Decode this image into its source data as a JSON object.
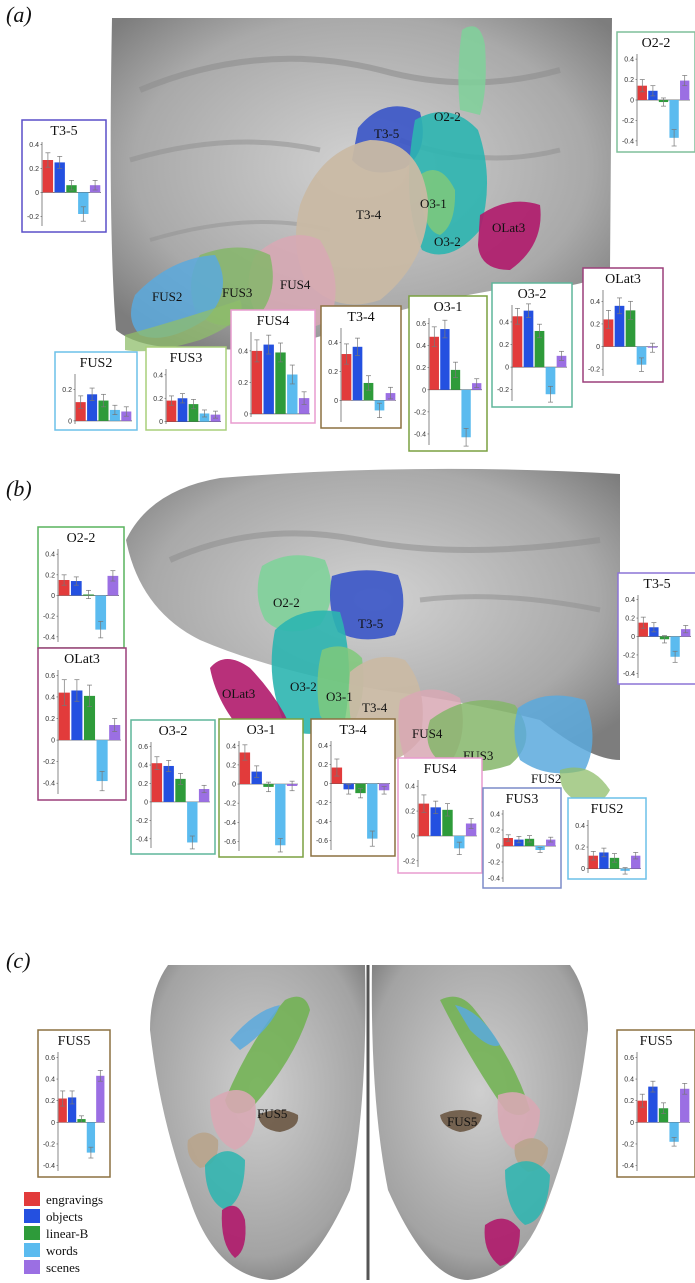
{
  "panel_labels": [
    "(a)",
    "(b)",
    "(c)"
  ],
  "colors": {
    "engravings": "#e23b3b",
    "objects": "#2450e0",
    "linear_b": "#2e9b3a",
    "words": "#5bbbef",
    "scenes": "#9b6fe3"
  },
  "legend": [
    "engravings",
    "objects",
    "linear-B",
    "words",
    "scenes"
  ],
  "region_labels": {
    "a": [
      "T3-5",
      "O2-2",
      "O3-1",
      "T3-4",
      "O3-2",
      "OLat3",
      "FUS2",
      "FUS3",
      "FUS4"
    ],
    "b": [
      "O2-2",
      "T3-5",
      "O3-2",
      "O3-1",
      "T3-4",
      "OLat3",
      "FUS4",
      "FUS3",
      "FUS2"
    ],
    "c": [
      "FUS5",
      "FUS5"
    ]
  },
  "chart_data": [
    {
      "id": "a-o2-2",
      "type": "bar",
      "title": "O2-2",
      "ticks": [
        0.4,
        0.2,
        0,
        -0.2,
        -0.4
      ],
      "ylim": [
        -0.45,
        0.45
      ],
      "values": [
        0.14,
        0.09,
        -0.02,
        -0.37,
        0.19
      ],
      "errors": [
        0.06,
        0.05,
        0.04,
        0.08,
        0.05
      ],
      "frame": "#7fbf9a"
    },
    {
      "id": "a-t3-5",
      "type": "bar",
      "title": "T3-5",
      "ticks": [
        0.4,
        0.2,
        0,
        -0.2
      ],
      "ylim": [
        -0.28,
        0.42
      ],
      "values": [
        0.27,
        0.25,
        0.06,
        -0.18,
        0.06
      ],
      "errors": [
        0.06,
        0.05,
        0.04,
        0.06,
        0.04
      ],
      "frame": "#5a4fc9"
    },
    {
      "id": "a-olat3",
      "type": "bar",
      "title": "OLat3",
      "ticks": [
        0.4,
        0.2,
        0,
        -0.2
      ],
      "ylim": [
        -0.26,
        0.5
      ],
      "values": [
        0.24,
        0.36,
        0.32,
        -0.16,
        -0.01
      ],
      "errors": [
        0.08,
        0.07,
        0.08,
        0.06,
        0.04
      ],
      "frame": "#9b3f7a"
    },
    {
      "id": "a-o3-2",
      "type": "bar",
      "title": "O3-2",
      "ticks": [
        0.4,
        0.2,
        0,
        -0.2
      ],
      "ylim": [
        -0.3,
        0.55
      ],
      "values": [
        0.45,
        0.5,
        0.32,
        -0.24,
        0.1
      ],
      "errors": [
        0.07,
        0.06,
        0.06,
        0.07,
        0.04
      ],
      "frame": "#5fb59a"
    },
    {
      "id": "a-o3-1",
      "type": "bar",
      "title": "O3-1",
      "ticks": [
        0.6,
        0.4,
        0.2,
        0,
        -0.2,
        -0.4
      ],
      "ylim": [
        -0.5,
        0.65
      ],
      "values": [
        0.48,
        0.55,
        0.18,
        -0.43,
        0.06
      ],
      "errors": [
        0.09,
        0.08,
        0.07,
        0.08,
        0.04
      ],
      "frame": "#7aa040"
    },
    {
      "id": "a-t3-4",
      "type": "bar",
      "title": "T3-4",
      "ticks": [
        0.4,
        0.2,
        0
      ],
      "ylim": [
        -0.15,
        0.5
      ],
      "values": [
        0.32,
        0.37,
        0.12,
        -0.07,
        0.05
      ],
      "errors": [
        0.07,
        0.06,
        0.05,
        0.05,
        0.04
      ],
      "frame": "#8c7040"
    },
    {
      "id": "a-fus4",
      "type": "bar",
      "title": "FUS4",
      "ticks": [
        0.4,
        0.2,
        0
      ],
      "ylim": [
        -0.02,
        0.52
      ],
      "values": [
        0.4,
        0.44,
        0.39,
        0.25,
        0.1
      ],
      "errors": [
        0.07,
        0.06,
        0.06,
        0.06,
        0.04
      ],
      "frame": "#e89ccf"
    },
    {
      "id": "a-fus3",
      "type": "bar",
      "title": "FUS3",
      "ticks": [
        0.4,
        0.2,
        0
      ],
      "ylim": [
        -0.02,
        0.45
      ],
      "values": [
        0.18,
        0.2,
        0.15,
        0.07,
        0.06
      ],
      "errors": [
        0.04,
        0.04,
        0.04,
        0.03,
        0.03
      ],
      "frame": "#a9cf7a"
    },
    {
      "id": "a-fus2",
      "type": "bar",
      "title": "FUS2",
      "ticks": [
        0.2,
        0
      ],
      "ylim": [
        -0.02,
        0.3
      ],
      "values": [
        0.12,
        0.17,
        0.13,
        0.07,
        0.06
      ],
      "errors": [
        0.04,
        0.04,
        0.04,
        0.03,
        0.03
      ],
      "frame": "#6cc0e8"
    },
    {
      "id": "b-o2-2",
      "type": "bar",
      "title": "O2-2",
      "ticks": [
        0.4,
        0.2,
        0,
        -0.2,
        -0.4
      ],
      "ylim": [
        -0.45,
        0.45
      ],
      "values": [
        0.15,
        0.14,
        0.01,
        -0.33,
        0.19
      ],
      "errors": [
        0.05,
        0.04,
        0.04,
        0.08,
        0.05
      ],
      "frame": "#59b35d"
    },
    {
      "id": "b-t3-5",
      "type": "bar",
      "title": "T3-5",
      "ticks": [
        0.4,
        0.2,
        0,
        -0.2,
        -0.4
      ],
      "ylim": [
        -0.45,
        0.45
      ],
      "values": [
        0.15,
        0.1,
        -0.03,
        -0.22,
        0.08
      ],
      "errors": [
        0.06,
        0.05,
        0.04,
        0.06,
        0.04
      ],
      "frame": "#8c74d6"
    },
    {
      "id": "b-olat3",
      "type": "bar",
      "title": "OLat3",
      "ticks": [
        0.6,
        0.4,
        0.2,
        0,
        -0.2,
        -0.4
      ],
      "ylim": [
        -0.5,
        0.65
      ],
      "values": [
        0.44,
        0.46,
        0.41,
        -0.38,
        0.14
      ],
      "errors": [
        0.12,
        0.1,
        0.1,
        0.09,
        0.06
      ],
      "frame": "#9b3f7a"
    },
    {
      "id": "b-o3-2",
      "type": "bar",
      "title": "O3-2",
      "ticks": [
        0.6,
        0.4,
        0.2,
        0,
        -0.2,
        -0.4
      ],
      "ylim": [
        -0.5,
        0.65
      ],
      "values": [
        0.42,
        0.39,
        0.25,
        -0.44,
        0.14
      ],
      "errors": [
        0.07,
        0.06,
        0.06,
        0.07,
        0.04
      ],
      "frame": "#5fb59a"
    },
    {
      "id": "b-o3-1",
      "type": "bar",
      "title": "O3-1",
      "ticks": [
        0.4,
        0.2,
        0,
        -0.2,
        -0.4,
        -0.6
      ],
      "ylim": [
        -0.7,
        0.45
      ],
      "values": [
        0.33,
        0.13,
        -0.03,
        -0.64,
        -0.02
      ],
      "errors": [
        0.08,
        0.06,
        0.05,
        0.07,
        0.05
      ],
      "frame": "#7aa040"
    },
    {
      "id": "b-t3-4",
      "type": "bar",
      "title": "T3-4",
      "ticks": [
        0.4,
        0.2,
        0,
        -0.2,
        -0.4,
        -0.6
      ],
      "ylim": [
        -0.7,
        0.45
      ],
      "values": [
        0.17,
        -0.06,
        -0.1,
        -0.58,
        -0.07
      ],
      "errors": [
        0.09,
        0.05,
        0.05,
        0.08,
        0.04
      ],
      "frame": "#8c7040"
    },
    {
      "id": "b-fus4",
      "type": "bar",
      "title": "FUS4",
      "ticks": [
        0.4,
        0.2,
        0,
        -0.2
      ],
      "ylim": [
        -0.25,
        0.45
      ],
      "values": [
        0.26,
        0.23,
        0.21,
        -0.1,
        0.1
      ],
      "errors": [
        0.07,
        0.05,
        0.05,
        0.05,
        0.04
      ],
      "frame": "#e89ccf"
    },
    {
      "id": "b-fus3",
      "type": "bar",
      "title": "FUS3",
      "ticks": [
        0.4,
        0.2,
        0,
        -0.2,
        -0.4
      ],
      "ylim": [
        -0.45,
        0.45
      ],
      "values": [
        0.1,
        0.08,
        0.09,
        -0.05,
        0.08
      ],
      "errors": [
        0.04,
        0.04,
        0.04,
        0.03,
        0.03
      ],
      "frame": "#7c8cc8"
    },
    {
      "id": "b-fus2",
      "type": "bar",
      "title": "FUS2",
      "ticks": [
        0.4,
        0.2,
        0
      ],
      "ylim": [
        -0.04,
        0.45
      ],
      "values": [
        0.12,
        0.15,
        0.1,
        -0.02,
        0.12
      ],
      "errors": [
        0.04,
        0.04,
        0.04,
        0.03,
        0.03
      ],
      "frame": "#6cc0e8"
    },
    {
      "id": "c-fus5-left",
      "type": "bar",
      "title": "FUS5",
      "ticks": [
        0.6,
        0.4,
        0.2,
        0,
        -0.2,
        -0.4
      ],
      "ylim": [
        -0.45,
        0.65
      ],
      "values": [
        0.22,
        0.23,
        0.03,
        -0.28,
        0.43
      ],
      "errors": [
        0.07,
        0.06,
        0.03,
        0.05,
        0.05
      ],
      "frame": "#8c7040"
    },
    {
      "id": "c-fus5-right",
      "type": "bar",
      "title": "FUS5",
      "ticks": [
        0.6,
        0.4,
        0.2,
        0,
        -0.2,
        -0.4
      ],
      "ylim": [
        -0.45,
        0.65
      ],
      "values": [
        0.2,
        0.33,
        0.13,
        -0.18,
        0.31
      ],
      "errors": [
        0.06,
        0.05,
        0.05,
        0.04,
        0.05
      ],
      "frame": "#8c7040"
    }
  ]
}
